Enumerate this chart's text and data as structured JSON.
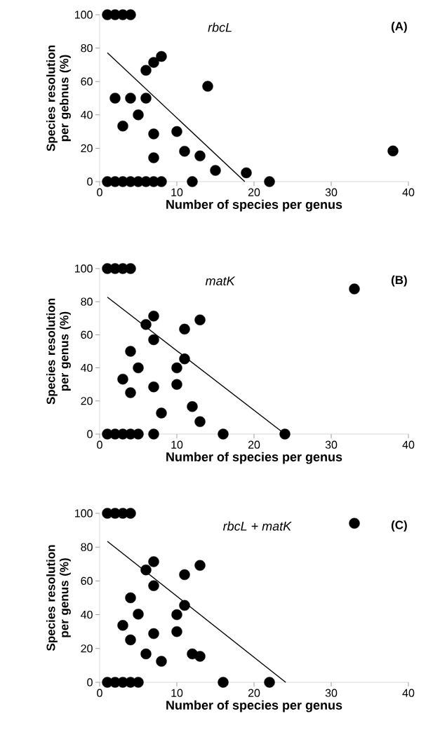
{
  "chart_data": [
    {
      "type": "scatter",
      "xlabel": "Number of species per genus",
      "ylabel": "Species resolution per gebnus (%)",
      "annotations": [
        "rbcL",
        "(A)"
      ],
      "xlim": [
        0,
        40
      ],
      "xticks": [
        0,
        10,
        20,
        30,
        40
      ],
      "ylim": [
        0,
        100
      ],
      "yticks": [
        0,
        20,
        40,
        60,
        80,
        100
      ],
      "series": [
        {
          "marker": "circle",
          "color": "#000000",
          "x": [
            1,
            2,
            3,
            4,
            1,
            2,
            3,
            4,
            5,
            6,
            7,
            8,
            12,
            22,
            2,
            4,
            6,
            6,
            7,
            8,
            14,
            5,
            3,
            7,
            7,
            10,
            11,
            13,
            15,
            19,
            38
          ],
          "values": [
            100,
            100,
            100,
            100,
            0,
            0,
            0,
            0,
            0,
            0,
            0,
            0,
            0,
            0,
            50,
            50,
            50,
            66.7,
            71.4,
            75,
            57.1,
            40,
            33.3,
            28.6,
            14.3,
            30,
            18.2,
            15.4,
            6.7,
            5.3,
            18.4
          ]
        },
        {
          "type": "line",
          "marker": "none",
          "color": "#000000",
          "x": [
            1,
            18.8
          ],
          "values": [
            77.2,
            0
          ]
        }
      ]
    },
    {
      "type": "scatter",
      "xlabel": "Number of species per genus",
      "ylabel": "Species resolution per genus (%)",
      "annotations": [
        "matK",
        "(B)"
      ],
      "xlim": [
        0,
        40
      ],
      "xticks": [
        0,
        10,
        20,
        30,
        40
      ],
      "ylim": [
        0,
        100
      ],
      "yticks": [
        0,
        20,
        40,
        60,
        80,
        100
      ],
      "series": [
        {
          "marker": "circle",
          "color": "#000000",
          "x": [
            1,
            2,
            3,
            4,
            1,
            2,
            3,
            4,
            5,
            7,
            16,
            24,
            33,
            7,
            6,
            11,
            13,
            7,
            4,
            11,
            5,
            10,
            3,
            4,
            7,
            10,
            8,
            12,
            13
          ],
          "values": [
            100,
            100,
            100,
            100,
            0,
            0,
            0,
            0,
            0,
            0,
            0,
            0,
            87.7,
            71.3,
            66.2,
            63.4,
            69,
            57,
            50,
            45.4,
            40,
            40,
            33.2,
            25,
            28.5,
            30,
            12.7,
            16.6,
            7.5
          ]
        },
        {
          "type": "line",
          "marker": "none",
          "color": "#000000",
          "x": [
            1,
            24
          ],
          "values": [
            82.7,
            0
          ]
        }
      ]
    },
    {
      "type": "scatter",
      "xlabel": "Number of species per genus",
      "ylabel": "Species resolution per genus (%)",
      "annotations": [
        "rbcL + matK",
        "(C)"
      ],
      "xlim": [
        0,
        40
      ],
      "xticks": [
        0,
        10,
        20,
        30,
        40
      ],
      "ylim": [
        0,
        100
      ],
      "yticks": [
        0,
        20,
        40,
        60,
        80,
        100
      ],
      "series": [
        {
          "marker": "circle",
          "color": "#000000",
          "x": [
            1,
            2,
            3,
            4,
            1,
            2,
            3,
            4,
            5,
            16,
            22,
            33,
            7,
            6,
            11,
            13,
            7,
            4,
            11,
            5,
            10,
            3,
            4,
            7,
            10,
            6,
            8,
            12,
            13
          ],
          "values": [
            100,
            100,
            100,
            100,
            0,
            0,
            0,
            0,
            0,
            0,
            0,
            94.1,
            71.4,
            66.5,
            63.7,
            69.2,
            57.2,
            50,
            45.5,
            40.3,
            40,
            33.7,
            25.1,
            28.8,
            30,
            16.8,
            12.4,
            16.8,
            15.4
          ]
        },
        {
          "type": "line",
          "marker": "none",
          "color": "#000000",
          "x": [
            1,
            24.1
          ],
          "values": [
            83.4,
            0
          ]
        }
      ]
    }
  ]
}
